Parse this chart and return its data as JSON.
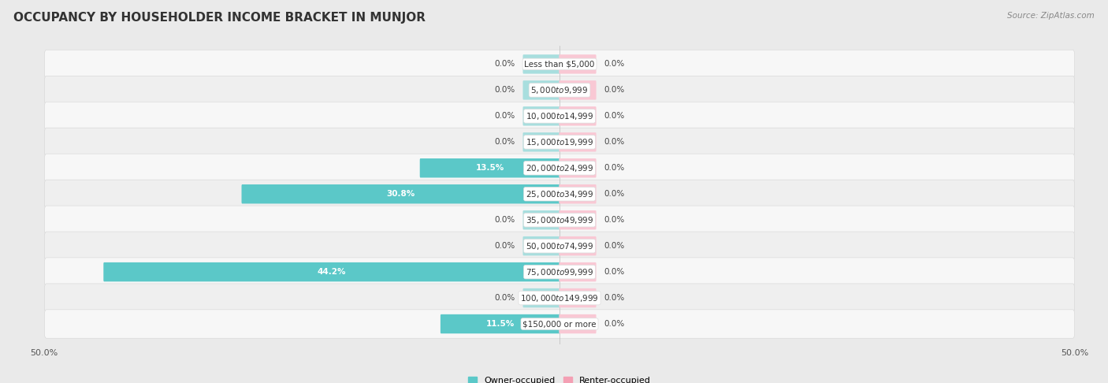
{
  "title": "OCCUPANCY BY HOUSEHOLDER INCOME BRACKET IN MUNJOR",
  "source": "Source: ZipAtlas.com",
  "categories": [
    "Less than $5,000",
    "$5,000 to $9,999",
    "$10,000 to $14,999",
    "$15,000 to $19,999",
    "$20,000 to $24,999",
    "$25,000 to $34,999",
    "$35,000 to $49,999",
    "$50,000 to $74,999",
    "$75,000 to $99,999",
    "$100,000 to $149,999",
    "$150,000 or more"
  ],
  "owner_values": [
    0.0,
    0.0,
    0.0,
    0.0,
    13.5,
    30.8,
    0.0,
    0.0,
    44.2,
    0.0,
    11.5
  ],
  "renter_values": [
    0.0,
    0.0,
    0.0,
    0.0,
    0.0,
    0.0,
    0.0,
    0.0,
    0.0,
    0.0,
    0.0
  ],
  "owner_color": "#5bc8c8",
  "renter_color": "#f4a0b4",
  "owner_color_light": "#a8dede",
  "renter_color_light": "#f9c8d4",
  "axis_max": 50.0,
  "stub_size": 3.5,
  "bg_color": "#eaeaea",
  "row_bg_even": "#f7f7f7",
  "row_bg_odd": "#efefef",
  "title_fontsize": 11,
  "label_fontsize": 7.5,
  "cat_fontsize": 7.5,
  "tick_fontsize": 8,
  "source_fontsize": 7.5
}
